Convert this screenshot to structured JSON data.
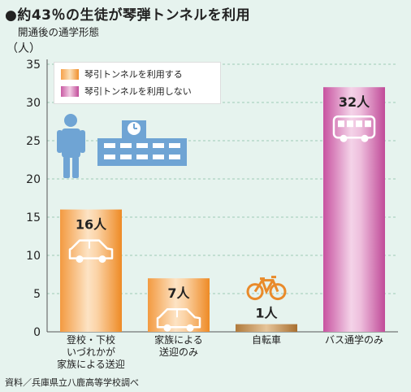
{
  "title": "●約43％の生徒が琴弾トンネルを利用",
  "subtitle": "開通後の通学形態",
  "source": "資料／兵庫県立八鹿高等学校調べ",
  "colors": {
    "tunnel": "#f59a3e",
    "no_tunnel": "#cf63ad",
    "icon_blue": "#6fa4d4",
    "icon_orange": "#e98a2a",
    "icon_pink": "#d45aa5",
    "grid": "#9fcbb6",
    "background": "#e6f3ee"
  },
  "chart_data": {
    "type": "bar",
    "ylabel": "（人）",
    "ylim": [
      0,
      35
    ],
    "yticks": [
      0,
      5,
      10,
      15,
      20,
      25,
      30,
      35
    ],
    "grid": true,
    "legend_position": "top-left",
    "legend": [
      {
        "label": "琴引トンネルを利用する",
        "color": "#f59a3e"
      },
      {
        "label": "琴引トンネルを利用しない",
        "color": "#cf63ad"
      }
    ],
    "categories": [
      [
        "登校・下校",
        "いづれかが",
        "家族による送迎"
      ],
      [
        "家族による",
        "送迎のみ"
      ],
      [
        "自転車"
      ],
      [
        "バス通学のみ"
      ]
    ],
    "values": [
      16,
      7,
      1,
      32
    ],
    "value_labels": [
      "16人",
      "7人",
      "1人",
      "32人"
    ],
    "bar_groups": [
      0,
      0,
      0,
      1
    ],
    "icons": [
      "car-icon",
      "car-icon",
      "bicycle-icon",
      "bus-icon"
    ]
  }
}
